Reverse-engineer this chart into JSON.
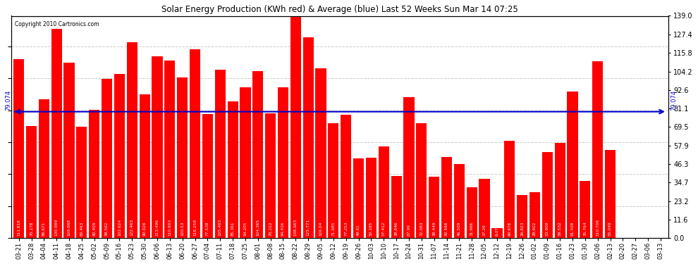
{
  "title": "Solar Energy Production (KWh red) & Average (blue) Last 52 Weeks Sun Mar 14 07:25",
  "copyright": "Copyright 2010 Cartronics.com",
  "average": 79.074,
  "bar_color": "#ff0000",
  "avg_line_color": "#0000cc",
  "background_color": "#ffffff",
  "grid_color": "#cccccc",
  "ylim": [
    0,
    139.0
  ],
  "yticks_right": [
    0.0,
    11.6,
    23.2,
    34.7,
    46.3,
    57.9,
    69.5,
    81.1,
    92.6,
    104.2,
    115.8,
    127.4,
    139.0
  ],
  "categories": [
    "03-21",
    "03-28",
    "04-04",
    "04-11",
    "04-18",
    "04-25",
    "05-02",
    "05-09",
    "05-16",
    "05-23",
    "05-30",
    "06-06",
    "06-13",
    "06-20",
    "06-27",
    "07-04",
    "07-11",
    "07-18",
    "07-25",
    "08-01",
    "08-08",
    "08-15",
    "08-22",
    "08-29",
    "09-05",
    "09-12",
    "09-19",
    "09-26",
    "10-03",
    "10-10",
    "10-17",
    "10-24",
    "10-31",
    "11-07",
    "11-14",
    "11-21",
    "11-28",
    "12-05",
    "12-12",
    "12-19",
    "12-26",
    "01-02",
    "01-09",
    "01-16",
    "01-23",
    "01-30",
    "02-06",
    "02-13",
    "02-20",
    "02-27",
    "03-06",
    "03-13"
  ],
  "values": [
    111.818,
    70.178,
    86.671,
    130.989,
    109.868,
    69.463,
    80.409,
    99.562,
    102.624,
    122.463,
    90.026,
    113.496,
    110.903,
    100.53,
    118.258,
    77.538,
    105.403,
    85.361,
    94.205,
    104.365,
    78.222,
    94.416,
    138.963,
    125.771,
    106.04,
    71.985,
    77.253,
    49.81,
    50.165,
    57.412,
    38.846,
    87.99,
    72.083,
    38.449,
    50.568,
    46.509,
    31.966,
    37.26,
    6.079,
    60.678,
    26.823,
    28.602,
    53.908,
    59.532,
    91.508,
    35.764,
    110.706,
    55.049,
    0.0,
    0.0,
    0.0,
    0.0
  ]
}
